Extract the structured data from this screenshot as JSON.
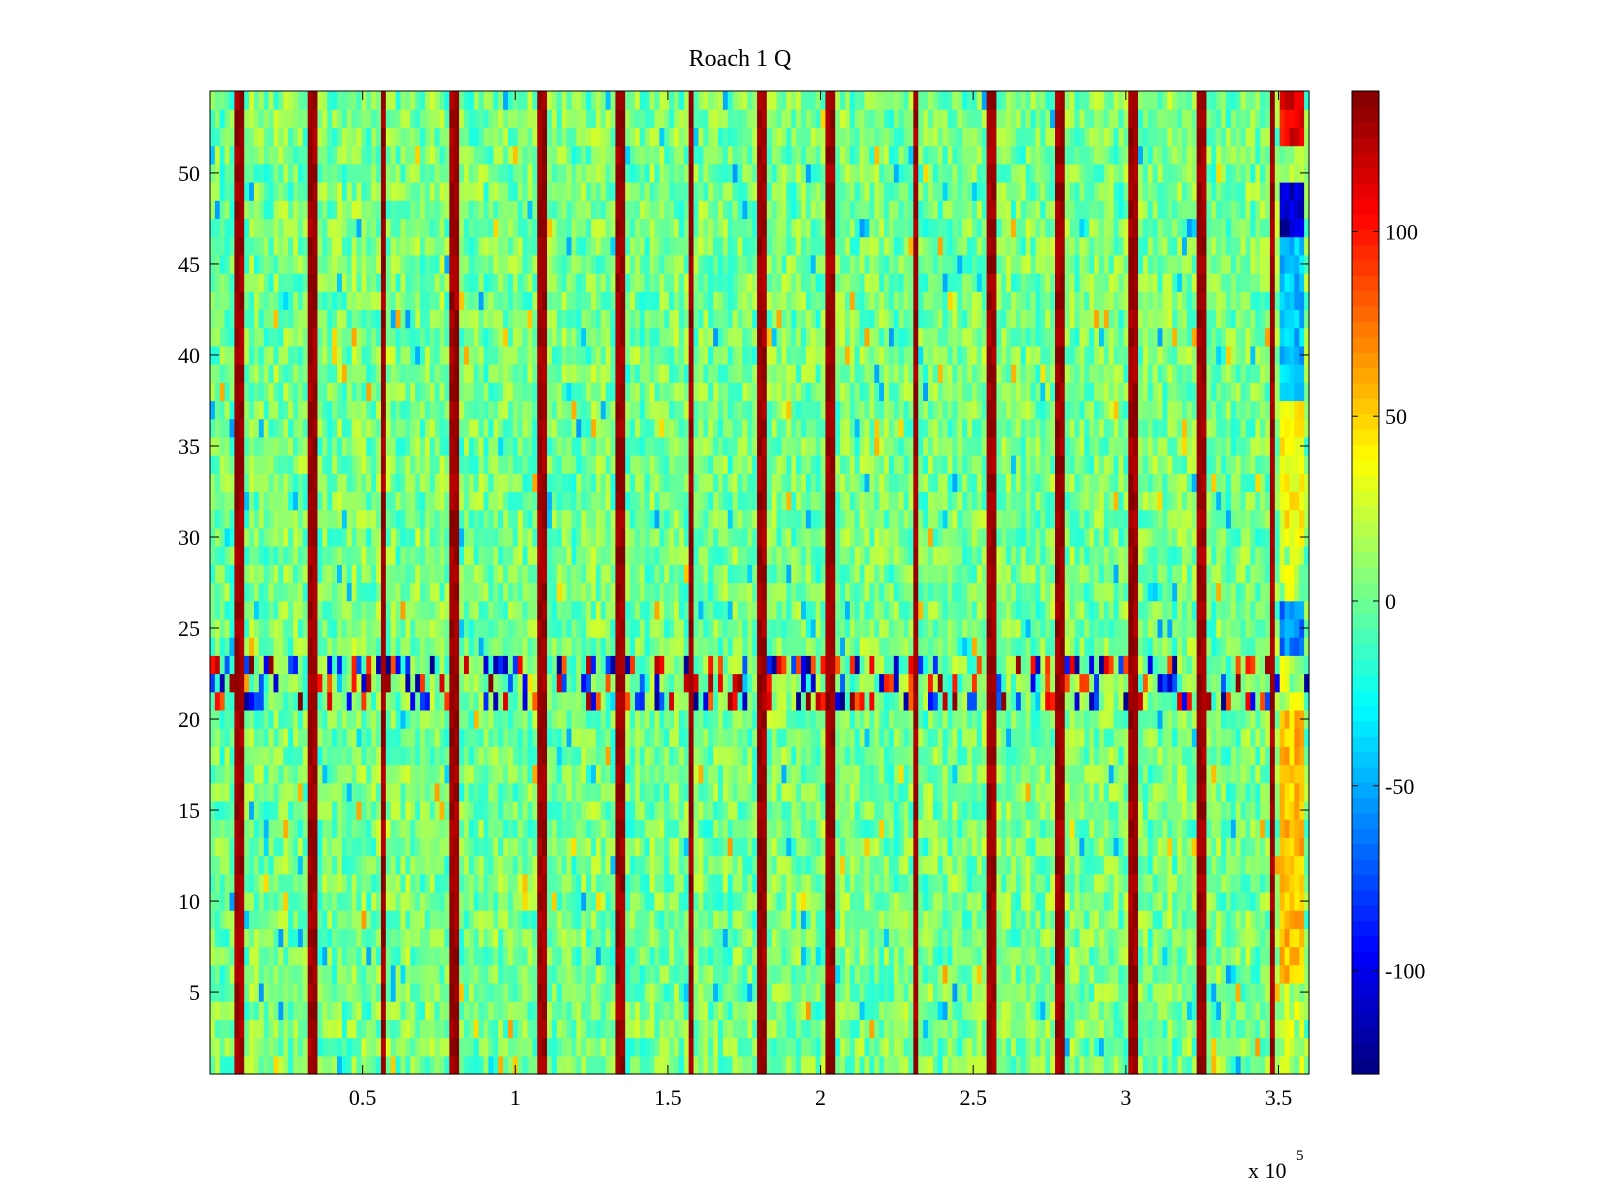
{
  "chart_data": {
    "type": "heatmap",
    "title": "Roach 1 Q",
    "xlabel": "",
    "ylabel": "",
    "colormap": "jet",
    "x_multiplier_label": "x 10",
    "x_multiplier_exponent": "5",
    "xlim": [
      0,
      360000
    ],
    "ylim": [
      0.5,
      54.5
    ],
    "x_ticks": [
      0.5,
      1,
      1.5,
      2,
      2.5,
      3,
      3.5
    ],
    "x_tick_labels": [
      "0.5",
      "1",
      "1.5",
      "2",
      "2.5",
      "3",
      "3.5"
    ],
    "y_ticks": [
      5,
      10,
      15,
      20,
      25,
      30,
      35,
      40,
      45,
      50
    ],
    "y_tick_labels": [
      "5",
      "10",
      "15",
      "20",
      "25",
      "30",
      "35",
      "40",
      "45",
      "50"
    ],
    "rows": 54,
    "clim": [
      -128,
      138
    ],
    "colorbar_ticks": [
      -100,
      -50,
      0,
      50,
      100
    ],
    "colorbar_tick_labels": [
      "-100",
      "-50",
      "0",
      "50",
      "100"
    ],
    "background_value_range": [
      -20,
      25
    ],
    "vertical_stripes_x": [
      10000,
      33500,
      57000,
      80000,
      109000,
      134000,
      157500,
      180500,
      203500,
      231000,
      256000,
      278500,
      302000,
      324500,
      348000
    ],
    "vertical_stripe_value": 138,
    "noisy_band_rows": [
      21,
      23
    ],
    "noisy_band_value_range": [
      -128,
      138
    ],
    "edge_columns_x_range": [
      350000,
      358000
    ],
    "edge_column_values": [
      {
        "rows": [
          52,
          54
        ],
        "value": 110
      },
      {
        "rows": [
          47,
          49
        ],
        "value": -110
      },
      {
        "rows": [
          38,
          46
        ],
        "value": -45
      },
      {
        "rows": [
          30,
          37
        ],
        "value": 40
      },
      {
        "rows": [
          24,
          26
        ],
        "value": -60
      },
      {
        "rows": [
          6,
          20
        ],
        "value": 55
      }
    ]
  }
}
